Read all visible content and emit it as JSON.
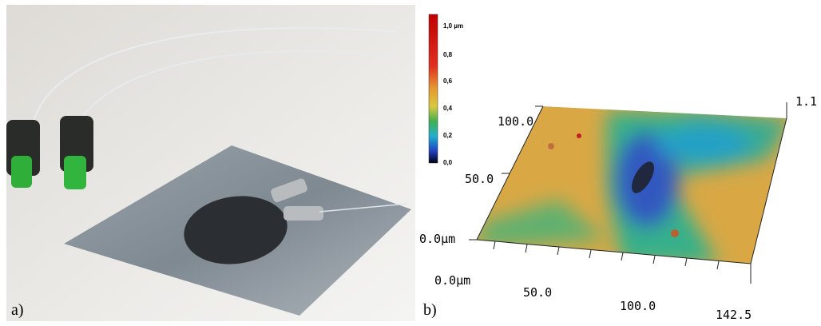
{
  "panel_a": {
    "label": "a)"
  },
  "panel_b": {
    "label": "b)",
    "colorbar": {
      "labels": [
        "1,0 µm",
        "0,8",
        "0,6",
        "0,4",
        "0,2",
        "0,0"
      ]
    },
    "y_axis": {
      "labels": [
        "100.0",
        "50.0",
        "0.0µm"
      ]
    },
    "x_axis": {
      "labels": [
        "0.0µm",
        "50.0",
        "100.0",
        "142.5"
      ]
    },
    "z_axis": {
      "label": "1.1"
    }
  }
}
